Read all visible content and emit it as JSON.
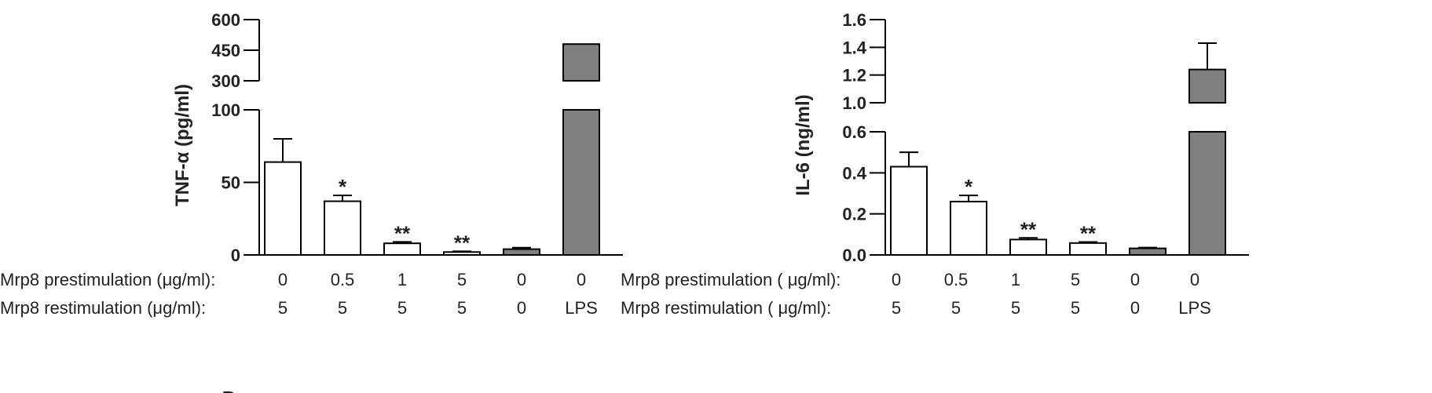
{
  "chart_data": [
    {
      "type": "bar",
      "ylabel": "TNF-α (pg/ml)",
      "broken_axis": true,
      "lower_range": [
        0,
        100
      ],
      "upper_range": [
        300,
        600
      ],
      "lower_ticks": [
        "0",
        "50",
        "100"
      ],
      "upper_ticks": [
        "300",
        "450",
        "600"
      ],
      "row_labels": [
        "Mrp8 prestimulation (μg/ml):",
        "Mrp8 restimulation (μg/ml):"
      ],
      "prestim": [
        "0",
        "0.5",
        "1",
        "5",
        "0",
        "0"
      ],
      "restim": [
        "5",
        "5",
        "5",
        "5",
        "0",
        "LPS"
      ],
      "values": [
        64,
        37,
        8,
        2,
        4,
        480
      ],
      "errors": [
        16,
        4,
        1,
        0.5,
        1,
        0
      ],
      "fills": [
        "#ffffff",
        "#ffffff",
        "#ffffff",
        "#ffffff",
        "#808080",
        "#808080"
      ],
      "significance": [
        "",
        "*",
        "**",
        "**",
        "",
        ""
      ]
    },
    {
      "type": "bar",
      "ylabel": "IL-6 (ng/ml)",
      "broken_axis": true,
      "lower_range": [
        0,
        0.6
      ],
      "upper_range": [
        1.0,
        1.6
      ],
      "lower_ticks": [
        "0.0",
        "0.2",
        "0.4",
        "0.6"
      ],
      "upper_ticks": [
        "1.0",
        "1.2",
        "1.4",
        "1.6"
      ],
      "row_labels": [
        "Mrp8 prestimulation ( μg/ml):",
        "Mrp8 restimulation ( μg/ml):"
      ],
      "prestim": [
        "0",
        "0.5",
        "1",
        "5",
        "0",
        "0"
      ],
      "restim": [
        "5",
        "5",
        "5",
        "5",
        "0",
        "LPS"
      ],
      "values": [
        0.43,
        0.26,
        0.075,
        0.058,
        0.032,
        1.24
      ],
      "errors": [
        0.07,
        0.03,
        0.008,
        0.005,
        0.004,
        0.19
      ],
      "fills": [
        "#ffffff",
        "#ffffff",
        "#ffffff",
        "#ffffff",
        "#808080",
        "#808080"
      ],
      "significance": [
        "",
        "*",
        "**",
        "**",
        "",
        ""
      ]
    }
  ],
  "footer_fragment": "B"
}
